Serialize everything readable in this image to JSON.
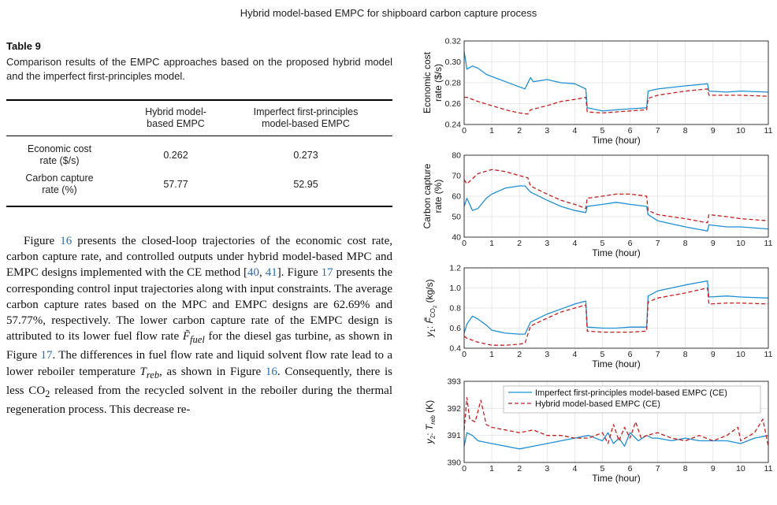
{
  "running_head": "Hybrid model-based EMPC for shipboard carbon capture process",
  "table": {
    "label": "Table 9",
    "caption": "Comparison results of the EMPC approaches based on the proposed hybrid model and the imperfect first-principles model.",
    "col_headers": [
      "Hybrid model-based EMPC",
      "Imperfect first-principles model-based EMPC"
    ],
    "col_header_lines": [
      [
        "Hybrid model-",
        "based EMPC"
      ],
      [
        "Imperfect first-principles",
        "model-based EMPC"
      ]
    ],
    "rows": [
      {
        "label_lines": [
          "Economic cost",
          "rate ($/s)"
        ],
        "values": [
          "0.262",
          "0.273"
        ]
      },
      {
        "label_lines": [
          "Carbon capture",
          "rate (%)"
        ],
        "values": [
          "57.77",
          "52.95"
        ]
      }
    ]
  },
  "body_text": {
    "t1": "Figure ",
    "ref_fig16a": "16",
    "t2": " presents the closed-loop trajectories of the economic cost rate, carbon capture rate, and controlled outputs under hybrid model-based MPC and EMPC designs implemented with the CE method [",
    "ref_40": "40",
    "t3": ", ",
    "ref_41": "41",
    "t4": "]. Figure ",
    "ref_fig17a": "17",
    "t5": " presents the corresponding control input trajectories along with input constraints. The average carbon capture rates based on the MPC and EMPC designs are 62.69% and 57.77%, respectively. The lower carbon capture rate of the EMPC design is attributed to its lower fuel flow rate ",
    "sym_ffuel": "F̃",
    "sym_ffuel_sub": "fuel",
    "t6": " for the diesel gas turbine, as shown in Figure ",
    "ref_fig17b": "17",
    "t7": ". The differences in fuel flow rate and liquid solvent flow rate lead to a lower reboiler temperature ",
    "sym_treb": "T",
    "sym_treb_sub": "reb",
    "t8": ", as shown in Figure ",
    "ref_fig16b": "16",
    "t9": ". Consequently, there is less CO",
    "co2_sub": "2",
    "t10": " released from the recycled solvent in the reboiler during the thermal regeneration process. This decrease re-"
  },
  "chart_data": [
    {
      "type": "line",
      "ylabel_lines": [
        "Economic cost",
        "rate ($/s)"
      ],
      "xlabel": "Time (hour)",
      "xlim": [
        0,
        11
      ],
      "ylim": [
        0.24,
        0.32
      ],
      "xticks": [
        "0",
        "1",
        "2",
        "3",
        "4",
        "5",
        "6",
        "7",
        "8",
        "9",
        "10",
        "11"
      ],
      "yticks": [
        "0.24",
        "0.26",
        "0.28",
        "0.30",
        "0.32"
      ],
      "grid": true,
      "series": [
        {
          "key": "imperfect",
          "color": "#1f8fd6",
          "style": "solid",
          "x": [
            0,
            0.1,
            0.3,
            0.5,
            0.8,
            1.0,
            1.5,
            2.0,
            2.2,
            2.4,
            2.5,
            3.0,
            3.5,
            4.0,
            4.4,
            4.45,
            5.0,
            5.5,
            6.0,
            6.6,
            6.65,
            7.0,
            8.0,
            8.8,
            8.85,
            9.5,
            10.0,
            11.0
          ],
          "y": [
            0.31,
            0.293,
            0.296,
            0.294,
            0.288,
            0.286,
            0.281,
            0.276,
            0.274,
            0.285,
            0.281,
            0.283,
            0.28,
            0.279,
            0.274,
            0.256,
            0.253,
            0.254,
            0.255,
            0.256,
            0.272,
            0.274,
            0.277,
            0.279,
            0.272,
            0.271,
            0.272,
            0.271
          ]
        },
        {
          "key": "hybrid",
          "color": "#c81e1e",
          "style": "dashed",
          "x": [
            0,
            0.1,
            0.5,
            1.0,
            1.5,
            2.0,
            2.3,
            2.4,
            3.0,
            3.5,
            4.0,
            4.4,
            4.45,
            5.0,
            5.5,
            6.0,
            6.6,
            6.65,
            7.0,
            8.0,
            8.8,
            8.85,
            9.5,
            10.0,
            11.0
          ],
          "y": [
            0.266,
            0.266,
            0.262,
            0.258,
            0.254,
            0.251,
            0.25,
            0.254,
            0.258,
            0.262,
            0.264,
            0.266,
            0.252,
            0.251,
            0.252,
            0.253,
            0.254,
            0.265,
            0.268,
            0.272,
            0.274,
            0.268,
            0.268,
            0.268,
            0.267
          ]
        }
      ]
    },
    {
      "type": "line",
      "ylabel_lines": [
        "Carbon capture",
        "rate (%)"
      ],
      "xlabel": "Time (hour)",
      "xlim": [
        0,
        11
      ],
      "ylim": [
        40,
        80
      ],
      "xticks": [
        "0",
        "1",
        "2",
        "3",
        "4",
        "5",
        "6",
        "7",
        "8",
        "9",
        "10",
        "11"
      ],
      "yticks": [
        "40",
        "50",
        "60",
        "70",
        "80"
      ],
      "grid": true,
      "series": [
        {
          "key": "imperfect",
          "color": "#1f8fd6",
          "style": "solid",
          "x": [
            0,
            0.1,
            0.3,
            0.5,
            0.8,
            1.0,
            1.5,
            2.0,
            2.2,
            2.4,
            3.0,
            3.5,
            4.0,
            4.4,
            4.45,
            5.0,
            5.5,
            6.0,
            6.6,
            6.65,
            7.0,
            8.0,
            8.8,
            8.85,
            9.5,
            10.0,
            11.0
          ],
          "y": [
            55,
            59,
            53,
            54,
            59,
            61,
            64,
            65,
            65,
            62,
            58,
            55,
            53,
            52,
            55,
            56,
            57,
            56,
            55,
            51,
            48,
            45,
            43,
            46,
            45,
            45,
            44
          ]
        },
        {
          "key": "hybrid",
          "color": "#c81e1e",
          "style": "dashed",
          "x": [
            0,
            0.1,
            0.5,
            1.0,
            1.5,
            2.0,
            2.3,
            2.4,
            3.0,
            3.5,
            4.0,
            4.4,
            4.45,
            5.0,
            5.5,
            6.0,
            6.6,
            6.65,
            7.0,
            8.0,
            8.8,
            8.85,
            9.5,
            10.0,
            11.0
          ],
          "y": [
            68,
            66,
            71,
            73,
            72,
            70,
            69,
            65,
            61,
            58,
            56,
            54,
            59,
            60,
            61,
            61,
            60,
            53,
            51,
            49,
            47,
            51,
            50,
            49,
            48
          ]
        }
      ]
    },
    {
      "type": "line",
      "ylabel_lines": [
        "y1: F̃CO2 (kg/s)"
      ],
      "ylabel_parts": {
        "y": "y",
        "y_sub": "1",
        "colon": ": ",
        "F": "F̃",
        "F_sub": "CO",
        "F_subsub": "2",
        "unit": " (kg/s)"
      },
      "xlabel": "Time (hour)",
      "xlim": [
        0,
        11
      ],
      "ylim": [
        0.4,
        1.2
      ],
      "xticks": [
        "0",
        "1",
        "2",
        "3",
        "4",
        "5",
        "6",
        "7",
        "8",
        "9",
        "10",
        "11"
      ],
      "yticks": [
        "0.4",
        "0.6",
        "0.8",
        "1.0",
        "1.2"
      ],
      "grid": true,
      "series": [
        {
          "key": "imperfect",
          "color": "#1f8fd6",
          "style": "solid",
          "x": [
            0,
            0.1,
            0.3,
            0.5,
            0.8,
            1.0,
            1.5,
            2.0,
            2.2,
            2.4,
            3.0,
            3.5,
            4.0,
            4.4,
            4.45,
            5.0,
            5.5,
            6.0,
            6.6,
            6.65,
            7.0,
            8.0,
            8.8,
            8.85,
            9.5,
            10.0,
            11.0
          ],
          "y": [
            0.55,
            0.64,
            0.72,
            0.69,
            0.63,
            0.58,
            0.55,
            0.54,
            0.54,
            0.66,
            0.74,
            0.79,
            0.84,
            0.87,
            0.61,
            0.6,
            0.6,
            0.61,
            0.61,
            0.92,
            0.97,
            1.03,
            1.07,
            0.91,
            0.92,
            0.91,
            0.9
          ]
        },
        {
          "key": "hybrid",
          "color": "#c81e1e",
          "style": "dashed",
          "x": [
            0,
            0.1,
            0.5,
            1.0,
            1.5,
            2.0,
            2.2,
            2.4,
            3.0,
            3.5,
            4.0,
            4.4,
            4.45,
            5.0,
            5.5,
            6.0,
            6.6,
            6.65,
            7.0,
            8.0,
            8.8,
            8.85,
            9.5,
            10.0,
            11.0
          ],
          "y": [
            0.52,
            0.5,
            0.46,
            0.43,
            0.43,
            0.44,
            0.45,
            0.62,
            0.7,
            0.76,
            0.8,
            0.83,
            0.57,
            0.56,
            0.56,
            0.56,
            0.57,
            0.86,
            0.9,
            0.95,
            1.0,
            0.84,
            0.85,
            0.85,
            0.84
          ]
        }
      ]
    },
    {
      "type": "line",
      "ylabel_lines": [
        "y2: Treb (K)"
      ],
      "ylabel_parts": {
        "y": "y",
        "y_sub": "2",
        "colon": ": ",
        "T": "T",
        "T_sub": "reb",
        "unit": " (K)"
      },
      "xlabel": "Time (hour)",
      "xlim": [
        0,
        11
      ],
      "ylim": [
        390,
        393
      ],
      "xticks": [
        "0",
        "1",
        "2",
        "3",
        "4",
        "5",
        "6",
        "7",
        "8",
        "9",
        "10",
        "11"
      ],
      "yticks": [
        "390",
        "391",
        "392",
        "393"
      ],
      "grid": true,
      "legend": {
        "placement": "top-right",
        "entries": [
          {
            "label": "Imperfect first-principles model-based EMPC (CE)",
            "color": "#1f8fd6",
            "style": "solid"
          },
          {
            "label": "Hybrid model-based EMPC (CE)",
            "color": "#c81e1e",
            "style": "dashed"
          }
        ]
      },
      "series": [
        {
          "key": "imperfect",
          "color": "#1f8fd6",
          "style": "solid",
          "x": [
            0,
            0.1,
            0.3,
            0.5,
            1.0,
            1.5,
            2.0,
            2.5,
            3.0,
            3.5,
            4.0,
            4.5,
            5.0,
            5.2,
            5.4,
            5.6,
            5.8,
            6.0,
            6.3,
            6.6,
            6.8,
            7.0,
            7.5,
            8.0,
            8.5,
            9.0,
            9.5,
            10.0,
            10.5,
            11.0
          ],
          "y": [
            390.6,
            391.1,
            391.0,
            390.8,
            390.7,
            390.6,
            390.5,
            390.6,
            390.7,
            390.8,
            390.9,
            391.0,
            390.8,
            391.1,
            390.7,
            390.9,
            390.6,
            391.1,
            390.8,
            391.0,
            390.9,
            390.9,
            390.8,
            390.9,
            390.8,
            390.8,
            390.8,
            390.7,
            390.9,
            391.0
          ]
        },
        {
          "key": "hybrid",
          "color": "#c81e1e",
          "style": "dashed",
          "x": [
            0,
            0.1,
            0.2,
            0.4,
            0.6,
            0.8,
            1.0,
            1.5,
            2.0,
            2.5,
            3.0,
            3.5,
            4.0,
            4.5,
            5.0,
            5.2,
            5.4,
            5.6,
            5.8,
            6.0,
            6.2,
            6.4,
            6.6,
            7.0,
            7.5,
            8.0,
            8.5,
            9.0,
            9.5,
            9.9,
            10.0,
            10.5,
            10.8,
            11.0
          ],
          "y": [
            391.2,
            392.4,
            391.6,
            391.5,
            392.3,
            391.4,
            391.3,
            391.2,
            391.1,
            391.2,
            391.0,
            391.0,
            390.9,
            390.9,
            391.1,
            390.7,
            391.4,
            390.8,
            391.3,
            390.9,
            391.5,
            390.9,
            391.0,
            391.1,
            390.9,
            390.8,
            391.0,
            390.8,
            391.0,
            391.3,
            390.8,
            391.1,
            391.6,
            390.6
          ]
        }
      ]
    }
  ]
}
